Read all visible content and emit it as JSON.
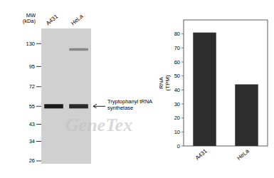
{
  "chart_data": [
    {
      "type": "blot",
      "color": "#d0d0d0",
      "ylabel": "MW\n(kDa)",
      "log": "y",
      "ylim": [
        25,
        160
      ],
      "yticks": [
        130,
        95,
        72,
        55,
        43,
        34,
        26
      ],
      "categories": [
        "A431",
        "HeLa"
      ],
      "series": [
        {
          "values": [
            55,
            55
          ],
          "colors": [
            "#1a1a1a",
            "#2a2a2a"
          ]
        },
        {
          "values": [
            null,
            120
          ],
          "colors": [
            null,
            "#888888"
          ]
        }
      ],
      "annotations": [
        {
          "text": "Tryptophanyl tRNA\nsynthetase",
          "y": 55
        },
        {
          "text": "GeneTex",
          "color": "#c0c0c0"
        }
      ]
    },
    {
      "type": "bar",
      "categories": [
        "A431",
        "HeLa"
      ],
      "values": [
        81,
        44
      ],
      "color": "#2d2d2d",
      "ylim": [
        0,
        90
      ],
      "yticks": [
        0,
        10,
        20,
        30,
        40,
        50,
        60,
        70,
        80
      ],
      "ylabel": "RNA\n(TPM)"
    }
  ]
}
